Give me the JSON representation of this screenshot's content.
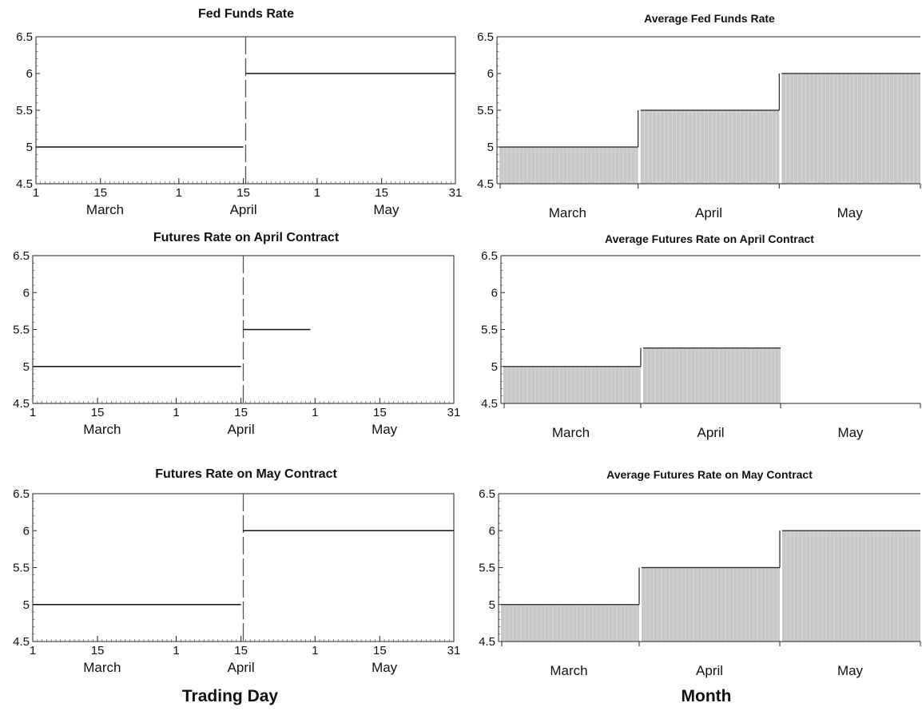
{
  "figure": {
    "x_titles": {
      "left": "Trading Day",
      "right": "Month"
    }
  },
  "chart_data": [
    {
      "id": "fed-funds-rate",
      "type": "line",
      "title": "Fed Funds Rate",
      "xlabel": "",
      "ylabel": "",
      "ylim": [
        4.5,
        6.5
      ],
      "yticks": [
        "4.5",
        "5",
        "5.5",
        "6",
        "6.5"
      ],
      "x_range_days": [
        1,
        92
      ],
      "day_ticks": [
        {
          "day": 1,
          "label": "1"
        },
        {
          "day": 15,
          "label": "15"
        },
        {
          "day": 32,
          "label": "1"
        },
        {
          "day": 46,
          "label": "15"
        },
        {
          "day": 62,
          "label": "1"
        },
        {
          "day": 76,
          "label": "15"
        },
        {
          "day": 92,
          "label": "31"
        }
      ],
      "month_labels": [
        {
          "day": 16,
          "label": "March"
        },
        {
          "day": 46,
          "label": "April"
        },
        {
          "day": 77,
          "label": "May"
        }
      ],
      "event_day": 46.5,
      "segments": [
        {
          "x_start": 1,
          "x_end": 46,
          "y": 5.0
        },
        {
          "x_start": 46.5,
          "x_end": 92,
          "y": 6.0
        }
      ]
    },
    {
      "id": "futures-april",
      "type": "line",
      "title": "Futures Rate on April Contract",
      "xlabel": "",
      "ylabel": "",
      "ylim": [
        4.5,
        6.5
      ],
      "yticks": [
        "4.5",
        "5",
        "5.5",
        "6",
        "6.5"
      ],
      "x_range_days": [
        1,
        92
      ],
      "day_ticks": [
        {
          "day": 1,
          "label": "1"
        },
        {
          "day": 15,
          "label": "15"
        },
        {
          "day": 32,
          "label": "1"
        },
        {
          "day": 46,
          "label": "15"
        },
        {
          "day": 62,
          "label": "1"
        },
        {
          "day": 76,
          "label": "15"
        },
        {
          "day": 92,
          "label": "31"
        }
      ],
      "month_labels": [
        {
          "day": 16,
          "label": "March"
        },
        {
          "day": 46,
          "label": "April"
        },
        {
          "day": 77,
          "label": "May"
        }
      ],
      "event_day": 46.5,
      "segments": [
        {
          "x_start": 1,
          "x_end": 46,
          "y": 5.0
        },
        {
          "x_start": 46.5,
          "x_end": 61,
          "y": 5.5
        }
      ]
    },
    {
      "id": "futures-may",
      "type": "line",
      "title": "Futures Rate on May Contract",
      "xlabel": "",
      "ylabel": "",
      "ylim": [
        4.5,
        6.5
      ],
      "yticks": [
        "4.5",
        "5",
        "5.5",
        "6",
        "6.5"
      ],
      "x_range_days": [
        1,
        92
      ],
      "day_ticks": [
        {
          "day": 1,
          "label": "1"
        },
        {
          "day": 15,
          "label": "15"
        },
        {
          "day": 32,
          "label": "1"
        },
        {
          "day": 46,
          "label": "15"
        },
        {
          "day": 62,
          "label": "1"
        },
        {
          "day": 76,
          "label": "15"
        },
        {
          "day": 92,
          "label": "31"
        }
      ],
      "month_labels": [
        {
          "day": 16,
          "label": "March"
        },
        {
          "day": 46,
          "label": "April"
        },
        {
          "day": 77,
          "label": "May"
        }
      ],
      "event_day": 46.5,
      "segments": [
        {
          "x_start": 1,
          "x_end": 46,
          "y": 5.0
        },
        {
          "x_start": 46.5,
          "x_end": 92,
          "y": 6.0
        }
      ]
    },
    {
      "id": "avg-fed-funds-rate",
      "type": "bar",
      "title": "Average Fed Funds Rate",
      "xlabel": "",
      "ylabel": "",
      "ylim": [
        4.5,
        6.5
      ],
      "yticks": [
        "4.5",
        "5",
        "5.5",
        "6",
        "6.5"
      ],
      "categories": [
        "March",
        "April",
        "May"
      ],
      "values": [
        5.0,
        5.5,
        6.0
      ],
      "bar_color": "#c8c8c8"
    },
    {
      "id": "avg-futures-april",
      "type": "bar",
      "title": "Average Futures Rate on April Contract",
      "xlabel": "",
      "ylabel": "",
      "ylim": [
        4.5,
        6.5
      ],
      "yticks": [
        "4.5",
        "5",
        "5.5",
        "6",
        "6.5"
      ],
      "categories": [
        "March",
        "April",
        "May"
      ],
      "values": [
        5.0,
        5.25,
        null
      ],
      "bar_color": "#c8c8c8"
    },
    {
      "id": "avg-futures-may",
      "type": "bar",
      "title": "Average Futures Rate on May Contract",
      "xlabel": "",
      "ylabel": "",
      "ylim": [
        4.5,
        6.5
      ],
      "yticks": [
        "4.5",
        "5",
        "5.5",
        "6",
        "6.5"
      ],
      "categories": [
        "March",
        "April",
        "May"
      ],
      "values": [
        5.0,
        5.5,
        6.0
      ],
      "bar_color": "#c8c8c8"
    }
  ]
}
